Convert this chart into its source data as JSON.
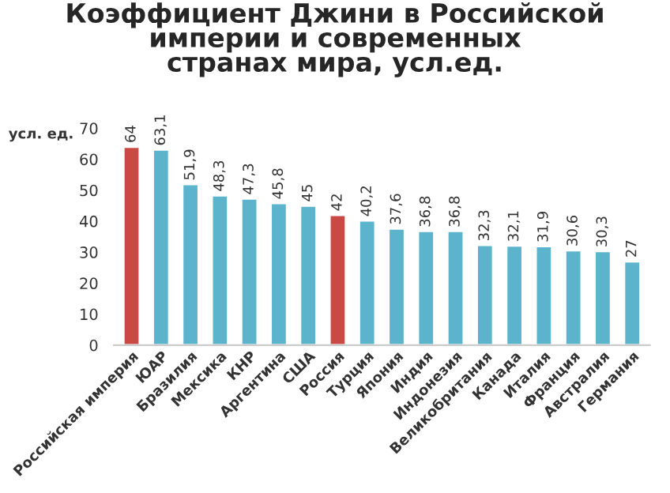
{
  "chart_data": {
    "type": "bar",
    "title": "Коэффициент Джини в Российской\nимперии и современных\nстранах мира, усл.ед.",
    "ylabel": "усл. ед.",
    "categories": [
      "Российская империя",
      "ЮАР",
      "Бразилия",
      "Мексика",
      "КНР",
      "Аргентина",
      "США",
      "Россия",
      "Турция",
      "Япония",
      "Индия",
      "Индонезия",
      "Великобритания",
      "Канада",
      "Италия",
      "Франция",
      "Австралия",
      "Германия"
    ],
    "values": [
      64,
      63.1,
      51.9,
      48.3,
      47.3,
      45.8,
      45,
      42,
      40.2,
      37.6,
      36.8,
      36.8,
      32.3,
      32.1,
      31.9,
      30.6,
      30.3,
      27
    ],
    "value_labels": [
      "64",
      "63,1",
      "51,9",
      "48,3",
      "47,3",
      "45,8",
      "45",
      "42",
      "40,2",
      "37,6",
      "36,8",
      "36,8",
      "32,3",
      "32,1",
      "31,9",
      "30,6",
      "30,3",
      "27"
    ],
    "colors": [
      "#c94a45",
      "#5bb4cc",
      "#5bb4cc",
      "#5bb4cc",
      "#5bb4cc",
      "#5bb4cc",
      "#5bb4cc",
      "#c94a45",
      "#5bb4cc",
      "#5bb4cc",
      "#5bb4cc",
      "#5bb4cc",
      "#5bb4cc",
      "#5bb4cc",
      "#5bb4cc",
      "#5bb4cc",
      "#5bb4cc",
      "#5bb4cc"
    ],
    "ylim": [
      0,
      70
    ],
    "yticks": [
      0,
      10,
      20,
      30,
      40,
      50,
      60,
      70
    ],
    "grid": false,
    "legend": false
  }
}
